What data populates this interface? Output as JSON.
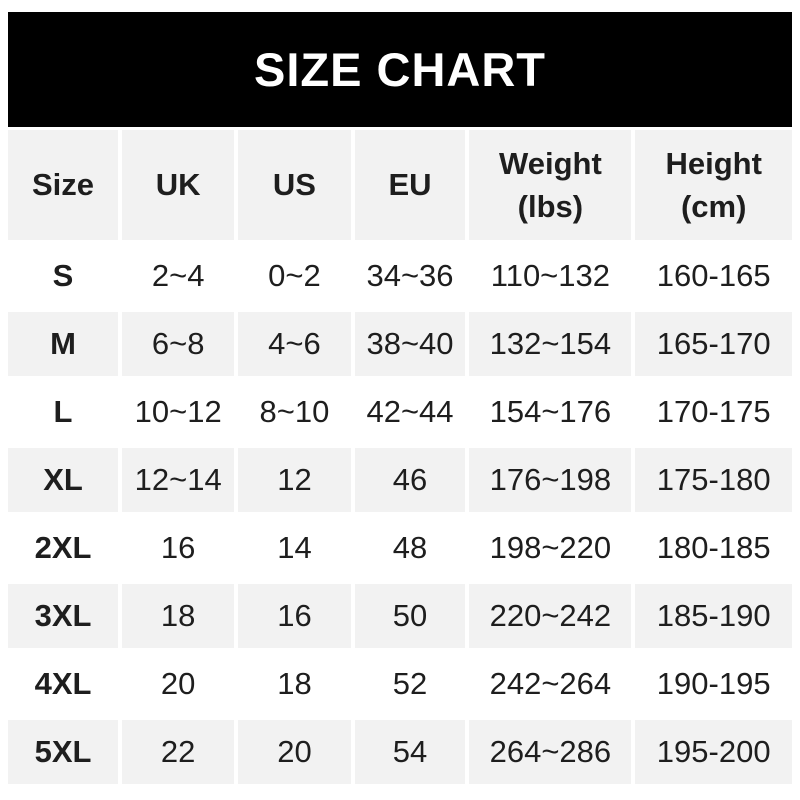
{
  "banner": {
    "title": "SIZE CHART"
  },
  "table": {
    "columns": [
      {
        "line1": "Size",
        "line2": ""
      },
      {
        "line1": "UK",
        "line2": ""
      },
      {
        "line1": "US",
        "line2": ""
      },
      {
        "line1": "EU",
        "line2": ""
      },
      {
        "line1": "Weight",
        "line2": "(lbs)"
      },
      {
        "line1": "Height",
        "line2": "(cm)"
      }
    ]
  },
  "chart_data": {
    "type": "table",
    "title": "SIZE CHART",
    "columns": [
      "Size",
      "UK",
      "US",
      "EU",
      "Weight (lbs)",
      "Height (cm)"
    ],
    "rows": [
      [
        "S",
        "2~4",
        "0~2",
        "34~36",
        "110~132",
        "160-165"
      ],
      [
        "M",
        "6~8",
        "4~6",
        "38~40",
        "132~154",
        "165-170"
      ],
      [
        "L",
        "10~12",
        "8~10",
        "42~44",
        "154~176",
        "170-175"
      ],
      [
        "XL",
        "12~14",
        "12",
        "46",
        "176~198",
        "175-180"
      ],
      [
        "2XL",
        "16",
        "14",
        "48",
        "198~220",
        "180-185"
      ],
      [
        "3XL",
        "18",
        "16",
        "50",
        "220~242",
        "185-190"
      ],
      [
        "4XL",
        "20",
        "18",
        "52",
        "242~264",
        "190-195"
      ],
      [
        "5XL",
        "22",
        "20",
        "54",
        "264~286",
        "195-200"
      ]
    ],
    "layout": {
      "header_row_shaded": true,
      "alternating_rows": true
    }
  },
  "colors": {
    "banner_bg": "#000000",
    "banner_text": "#ffffff",
    "row_alt_bg": "#f2f2f2",
    "text": "#1e1e1e",
    "page_bg": "#ffffff"
  }
}
